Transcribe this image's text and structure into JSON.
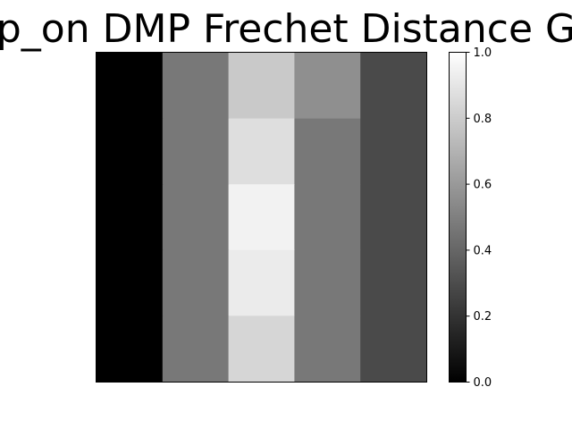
{
  "chart_data": {
    "type": "heatmap",
    "title": "p_on DMP Frechet Distance G",
    "xlabel": "",
    "ylabel": "",
    "colormap": "gray",
    "rows": 5,
    "cols": 5,
    "values": [
      [
        0.0,
        0.47,
        0.79,
        0.56,
        0.29
      ],
      [
        0.0,
        0.47,
        0.87,
        0.47,
        0.29
      ],
      [
        0.0,
        0.47,
        0.95,
        0.47,
        0.29
      ],
      [
        0.0,
        0.47,
        0.92,
        0.47,
        0.29
      ],
      [
        0.0,
        0.47,
        0.84,
        0.47,
        0.29
      ]
    ],
    "colorbar": {
      "range": [
        0.0,
        1.0
      ],
      "ticks": [
        0.0,
        0.2,
        0.4,
        0.6,
        0.8,
        1.0
      ],
      "tick_labels": [
        "0.0",
        "0.2",
        "0.4",
        "0.6",
        "0.8",
        "1.0"
      ]
    },
    "grid": false
  }
}
